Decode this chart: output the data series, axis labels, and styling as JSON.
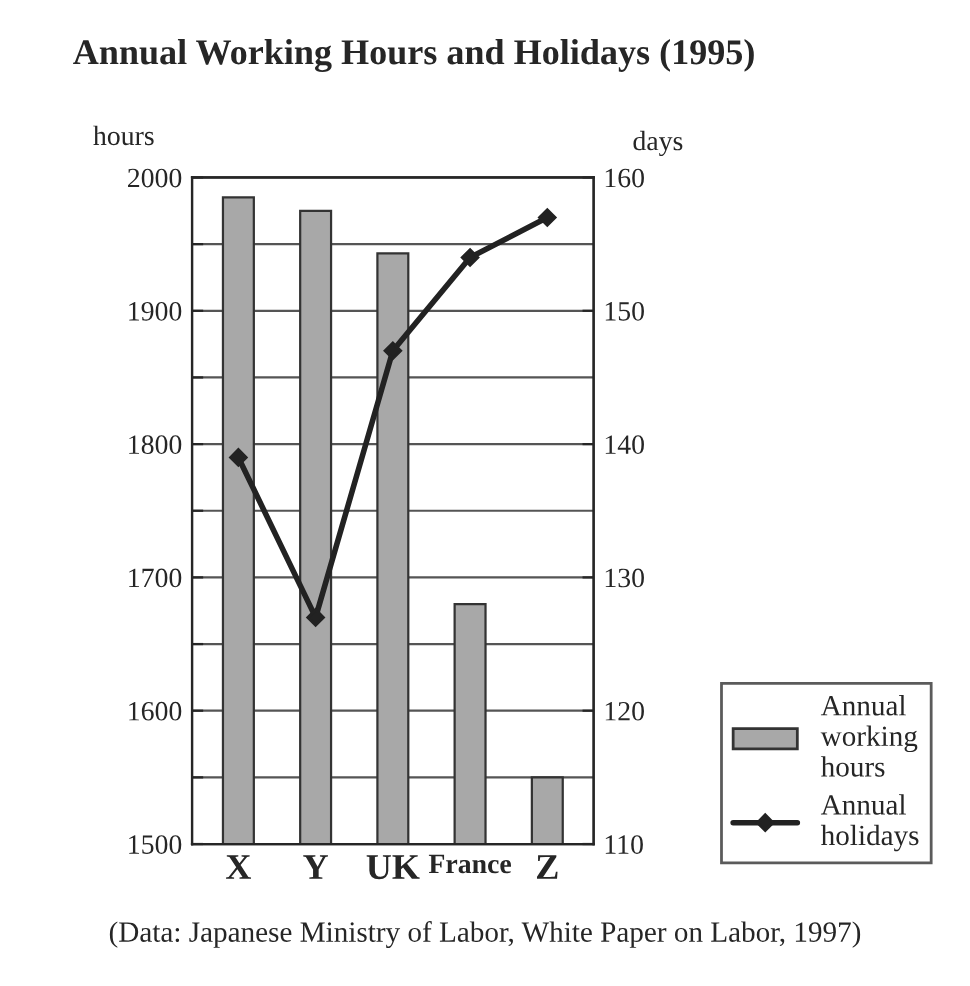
{
  "chart_data": {
    "type": "bar",
    "title": "Annual Working Hours and Holidays (1995)",
    "categories": [
      "X",
      "Y",
      "UK",
      "France",
      "Z"
    ],
    "series": [
      {
        "name": "Annual working hours",
        "color": "#a8a8a8",
        "values": [
          1985,
          1975,
          1943,
          1680,
          1550
        ]
      },
      {
        "name": "Annual holidays",
        "type": "line",
        "axis": "y2",
        "color": "#222222",
        "values": [
          139,
          127,
          147,
          154,
          157
        ]
      }
    ],
    "ylabel": "hours",
    "y2label": "days",
    "ylim": [
      1500,
      2000
    ],
    "yticks": [
      1500,
      {
        "value": 1550,
        "label": null
      },
      1600,
      {
        "value": 1650,
        "label": null
      },
      1700,
      {
        "value": 1750,
        "label": null
      },
      1800,
      {
        "value": 1850,
        "label": null
      },
      1900,
      {
        "value": 1950,
        "label": null
      },
      2000
    ],
    "y2lim": [
      110,
      160
    ],
    "y2ticks": [
      110,
      120,
      130,
      140,
      150,
      160
    ],
    "grid": "y",
    "legend": "bottom right",
    "marker": "diamond",
    "annotations": [
      "(Data: Japanese Ministry of Labor, White Paper on Labor, 1997)"
    ]
  }
}
